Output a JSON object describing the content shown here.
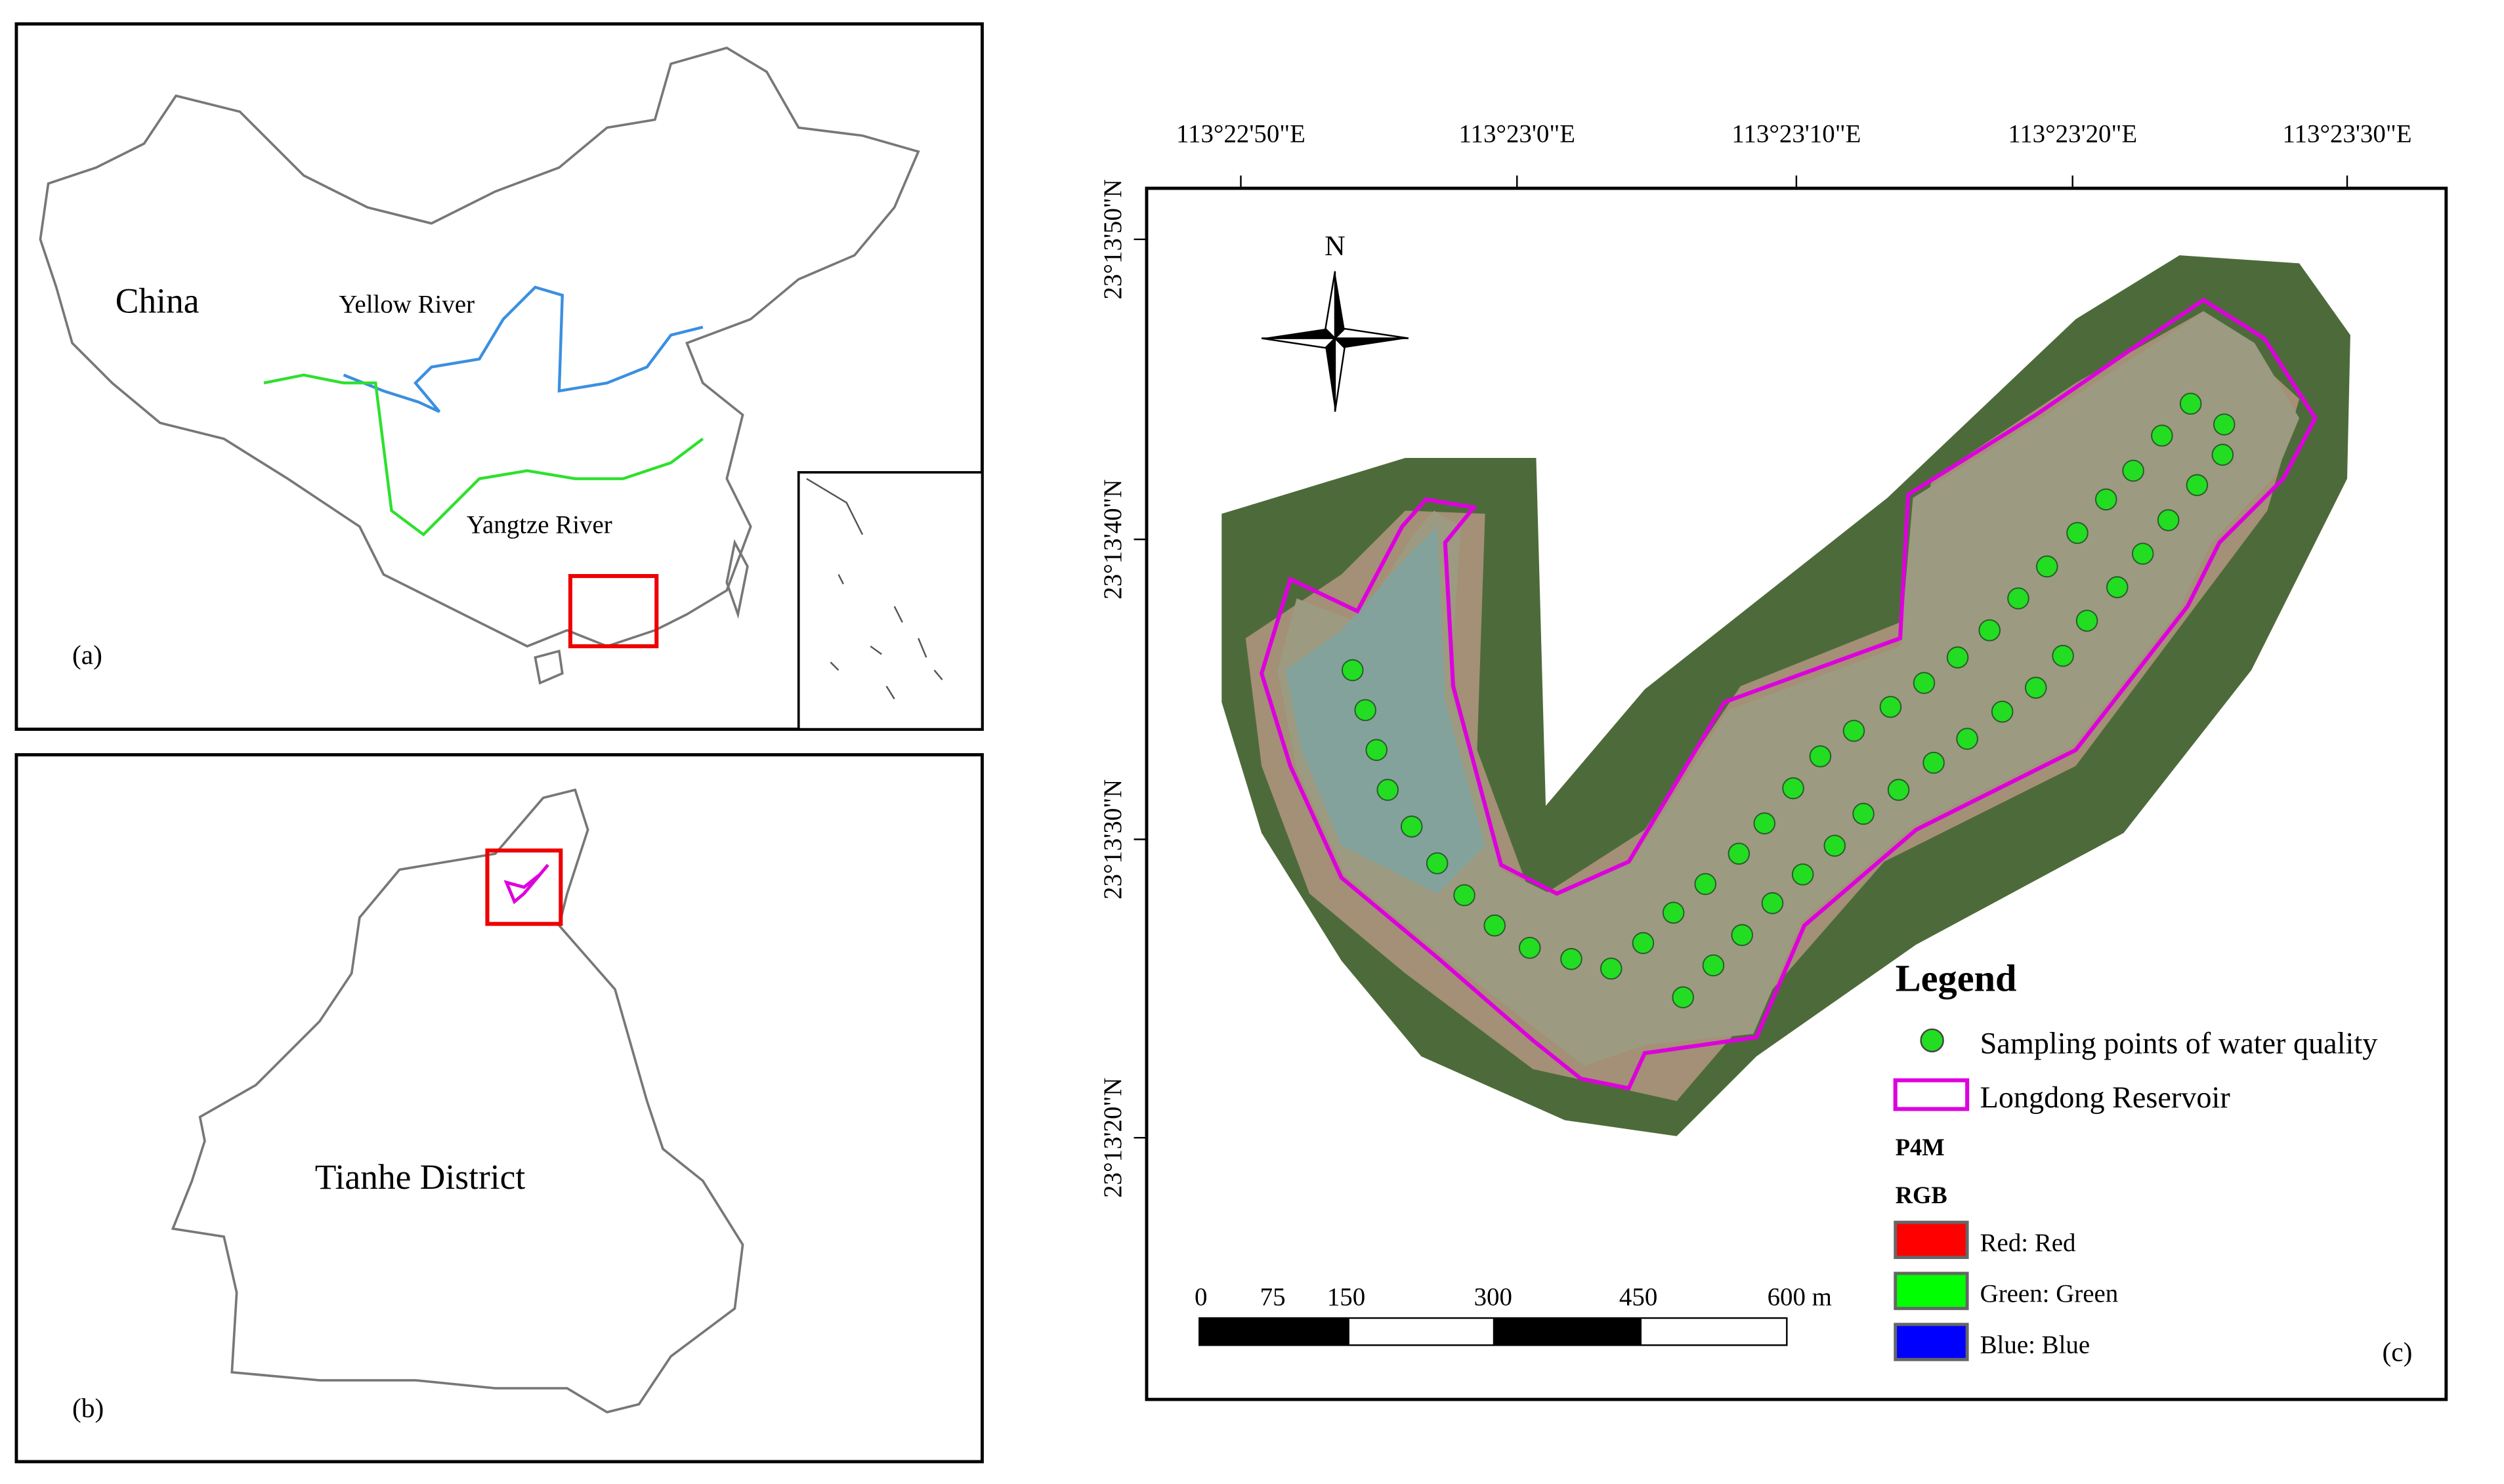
{
  "panel_a": {
    "country": "China",
    "yellow_river": "Yellow River",
    "yangtze_river": "Yangtze River",
    "panel_label": "(a)"
  },
  "panel_b": {
    "district": "Tianhe District",
    "panel_label": "(b)"
  },
  "panel_c": {
    "panel_label": "(c)",
    "north": "N",
    "x_ticks": [
      "113°22'50\"E",
      "113°23'0\"E",
      "113°23'10\"E",
      "113°23'20\"E",
      "113°23'30\"E"
    ],
    "y_ticks": [
      "23°13'50\"N",
      "23°13'40\"N",
      "23°13'30\"N",
      "23°13'20\"N"
    ],
    "legend": {
      "title": "Legend",
      "sampling": "Sampling points of water quality",
      "reservoir": "Longdong Reservoir",
      "p4m": "P4M",
      "rgb": "RGB",
      "bands": [
        "Red: Red",
        "Green: Green",
        "Blue: Blue"
      ]
    },
    "scale_bar": [
      "0",
      "75",
      "150",
      "300",
      "450",
      "600 m"
    ]
  }
}
